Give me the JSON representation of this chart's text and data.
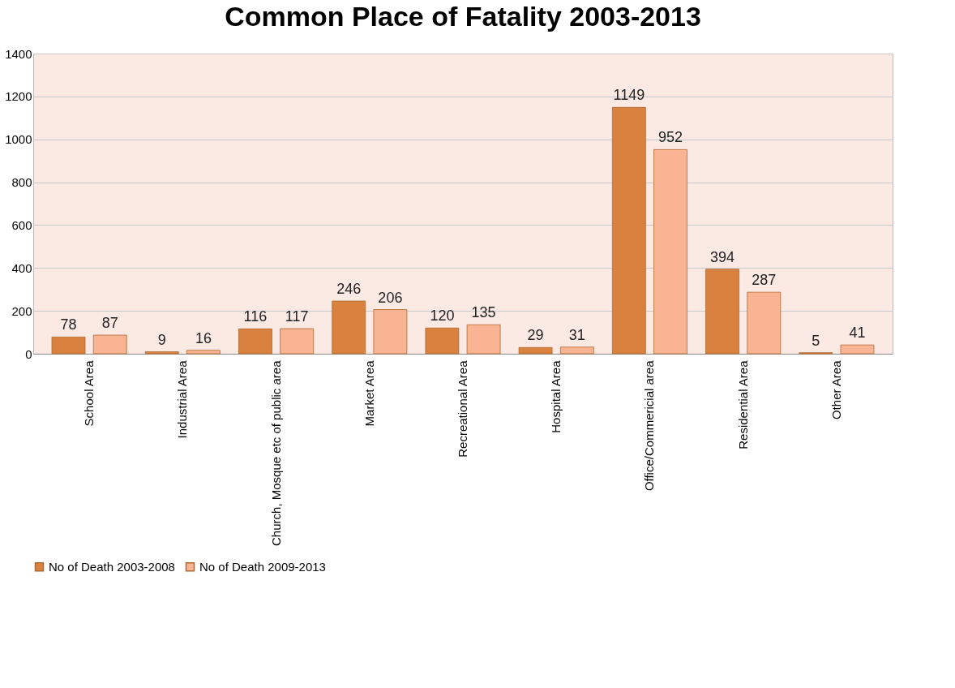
{
  "chart_data": {
    "type": "bar",
    "title": "Common Place of Fatality 2003-2013",
    "categories": [
      "School Area",
      "Industrial Area",
      "Church, Mosque etc of public area",
      "Market Area",
      "Recreational Area",
      "Hospital Area",
      "Office/Commericial area",
      "Residential Area",
      "Other Area"
    ],
    "series": [
      {
        "name": "No of Death 2003-2008",
        "color": "#d9823f",
        "values": [
          78,
          9,
          116,
          246,
          120,
          29,
          1149,
          394,
          5
        ]
      },
      {
        "name": "No of Death 2009-2013",
        "color": "#f9b494",
        "values": [
          87,
          16,
          117,
          206,
          135,
          31,
          952,
          287,
          41
        ]
      }
    ],
    "ylim": [
      0,
      1400
    ],
    "yticks": [
      0,
      200,
      400,
      600,
      800,
      1000,
      1200,
      1400
    ],
    "grid": "y",
    "legend": "bottom",
    "data_labels": true
  }
}
